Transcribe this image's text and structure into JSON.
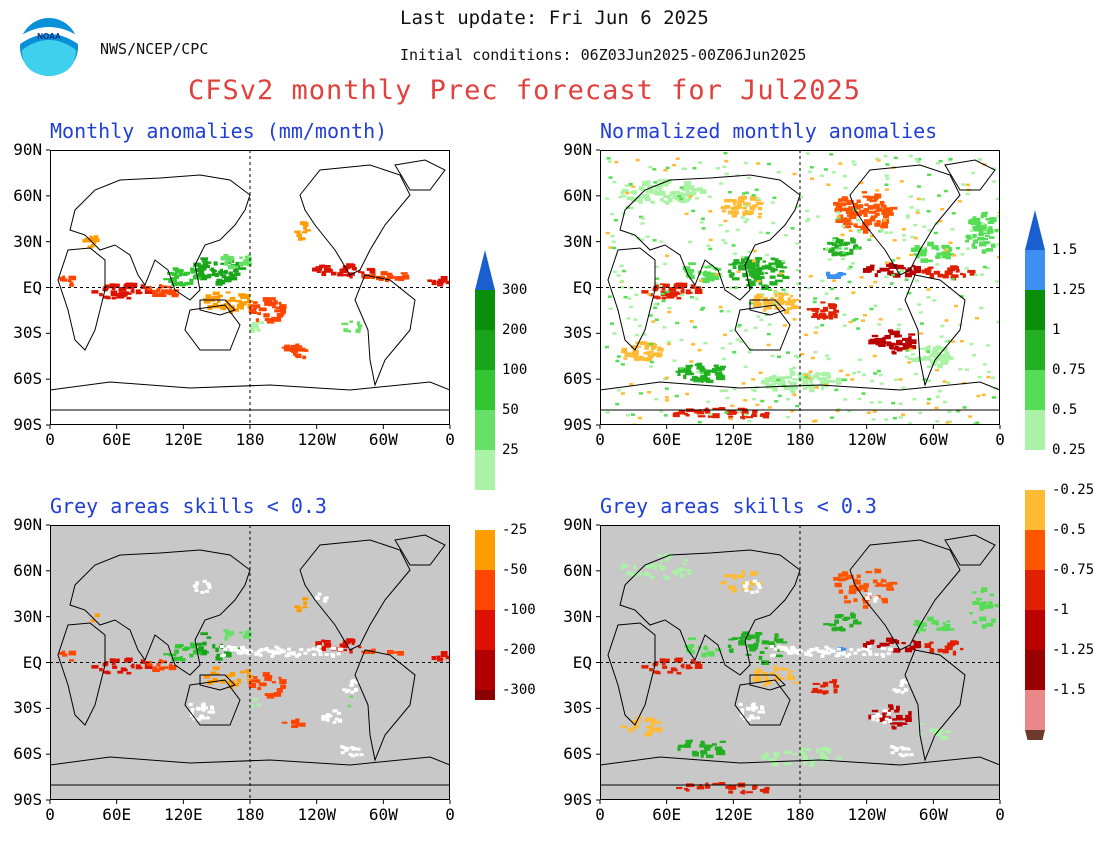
{
  "header": {
    "agency": "NWS/NCEP/CPC",
    "last_update": "Last update: Fri Jun  6 2025",
    "initial_conditions": "Initial conditions: 06Z03Jun2025-00Z06Jun2025",
    "title": "CFSv2 monthly Prec forecast for Jul2025",
    "logo_text": "NOAA"
  },
  "panels": [
    {
      "id": "anom",
      "title": "Monthly anomalies (mm/month)",
      "grey": false,
      "palette": "mm"
    },
    {
      "id": "norm",
      "title": "Normalized monthly anomalies",
      "grey": false,
      "palette": "norm"
    },
    {
      "id": "anom-skill",
      "title": "Grey areas skills < 0.3",
      "grey": true,
      "palette": "mm"
    },
    {
      "id": "norm-skill",
      "title": "Grey areas skills < 0.3",
      "grey": true,
      "palette": "norm"
    }
  ],
  "axes": {
    "lon_ticks": [
      "0",
      "60E",
      "120E",
      "180",
      "120W",
      "60W",
      "0"
    ],
    "lat_ticks": [
      "90N",
      "60N",
      "30N",
      "EQ",
      "30S",
      "60S",
      "90S"
    ]
  },
  "colorbars": {
    "mm": {
      "labels_pos": [
        "300",
        "200",
        "100",
        "50",
        "25"
      ],
      "labels_neg": [
        "-25",
        "-50",
        "-100",
        "-200",
        "-300"
      ],
      "colors_pos": [
        "#1a5fd0",
        "#0a8f0a",
        "#19a519",
        "#33c633",
        "#66e066",
        "#aaf2a5"
      ],
      "colors_neg": [
        "#ff9d00",
        "#ff4500",
        "#dd1100",
        "#b00000",
        "#8a0000",
        "#6b3a2a"
      ]
    },
    "norm": {
      "labels_pos": [
        "1.5",
        "1.25",
        "1",
        "0.75",
        "0.5",
        "0.25"
      ],
      "labels_neg": [
        "-0.25",
        "-0.5",
        "-0.75",
        "-1",
        "-1.25",
        "-1.5"
      ],
      "colors_pos": [
        "#1a5fd0",
        "#3d8ff0",
        "#0a8f0a",
        "#22b022",
        "#55dd55",
        "#aaf2a5"
      ],
      "colors_neg": [
        "#ffbb33",
        "#ff5500",
        "#e02000",
        "#bb0000",
        "#990000",
        "#e88888",
        "#6b3a2a"
      ]
    }
  },
  "colors": {
    "grey": "#c8c8c8",
    "title_red": "#e0413d",
    "panel_title_blue": "#1f3fd6"
  }
}
